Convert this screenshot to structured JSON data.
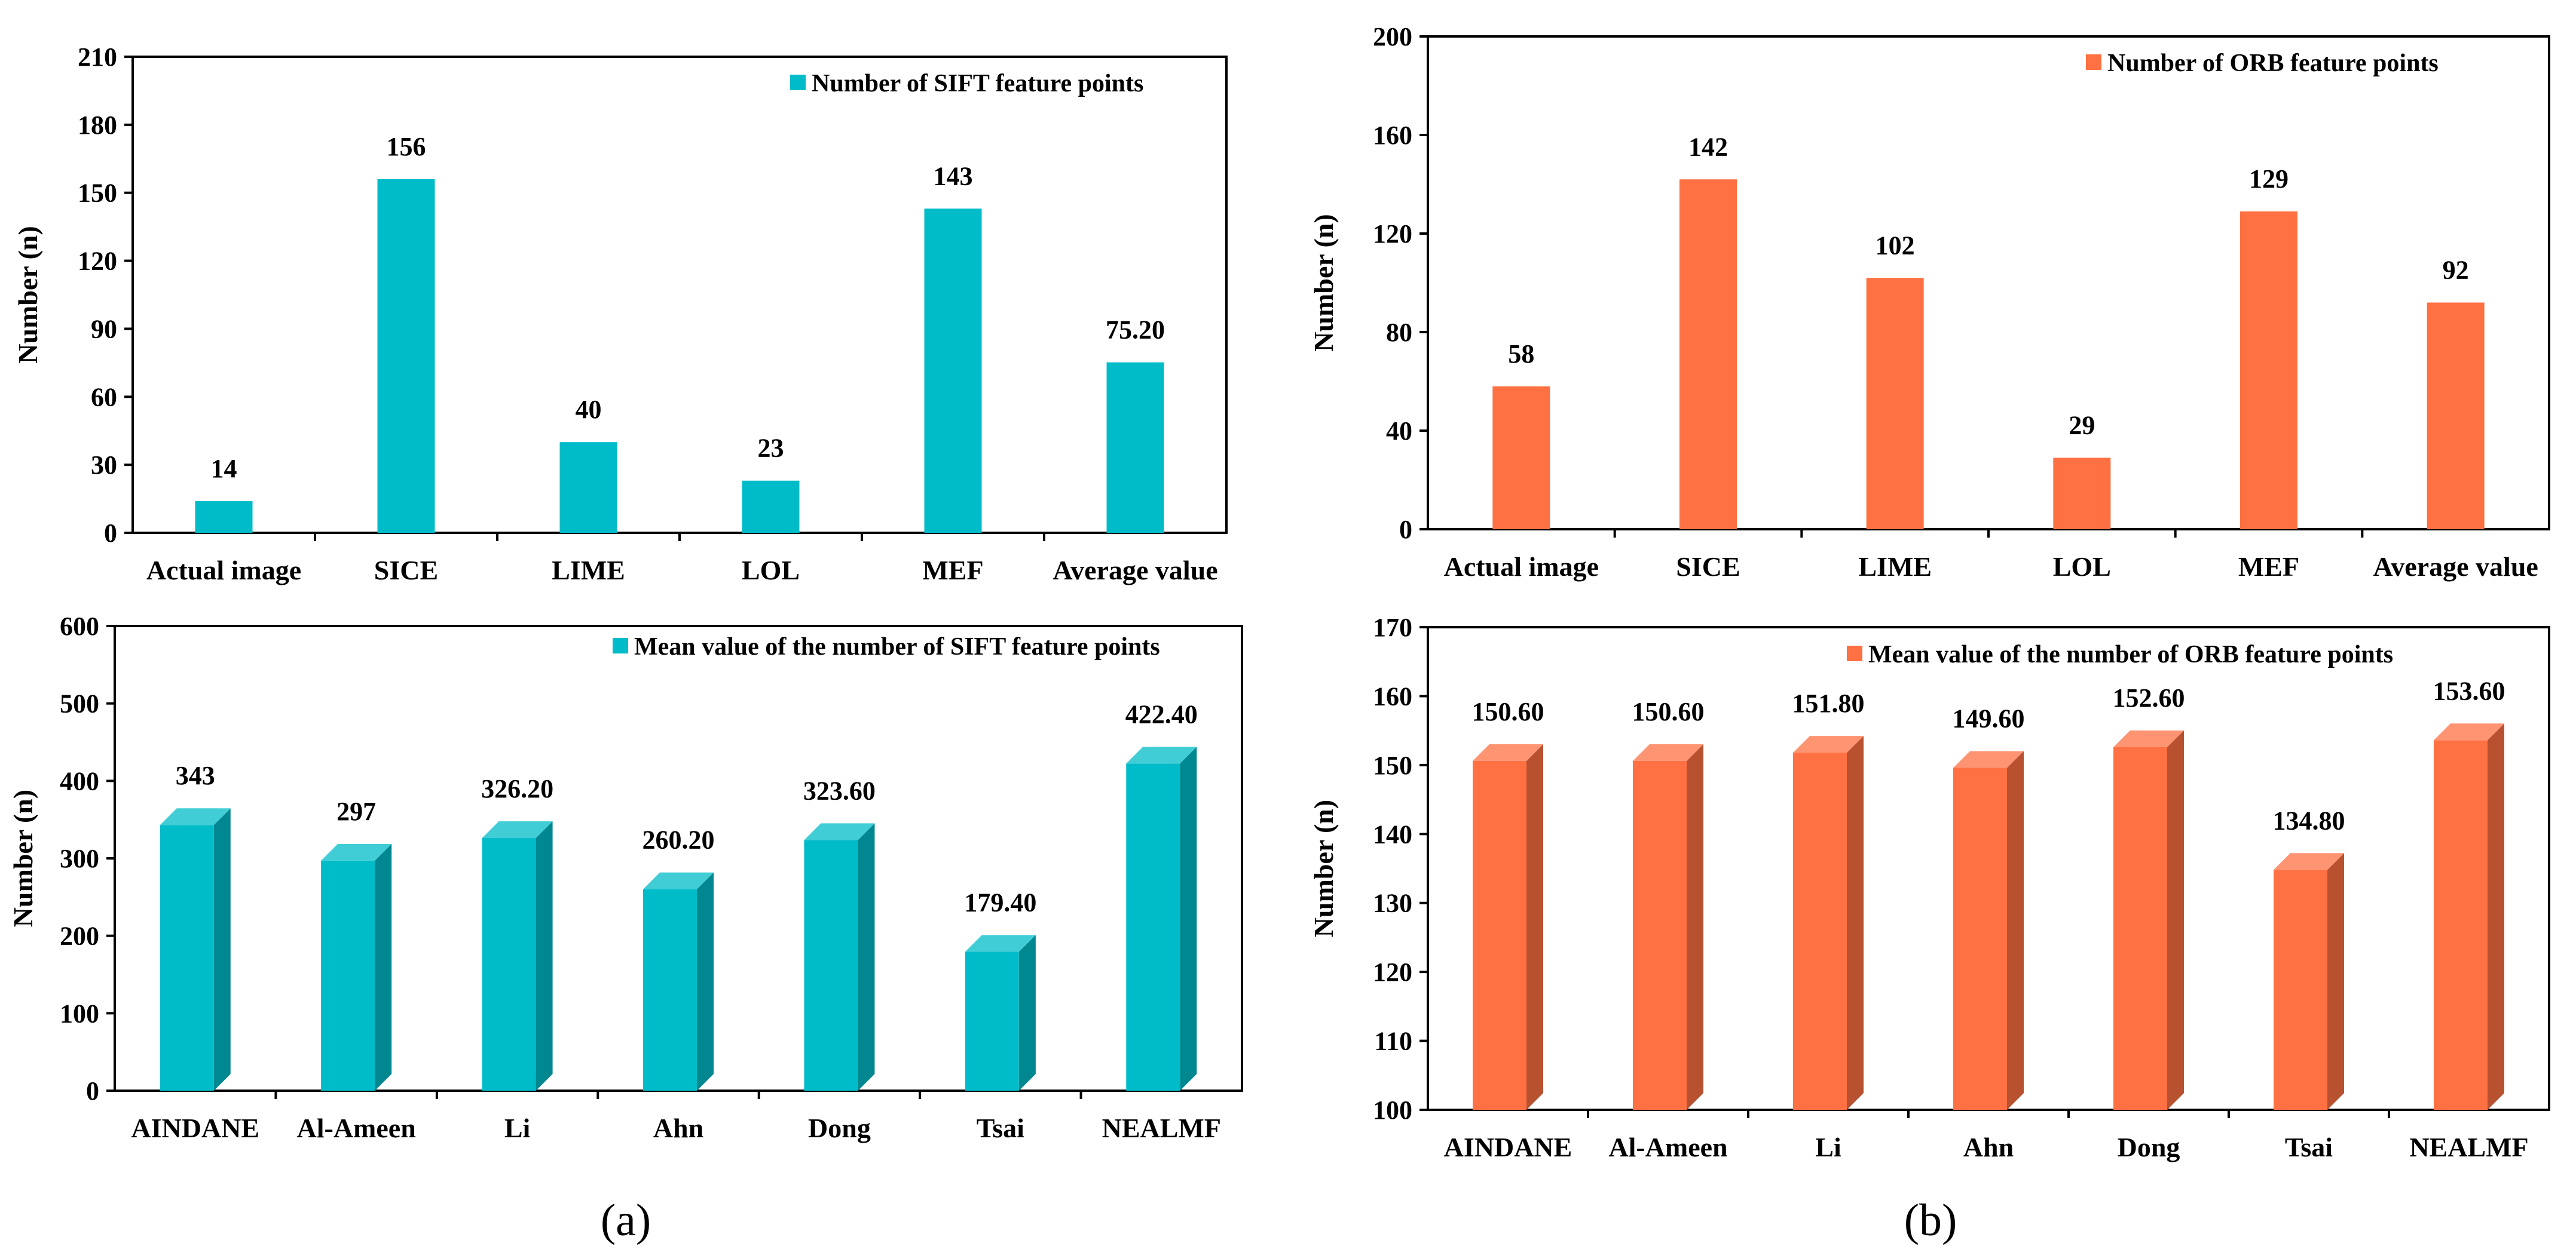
{
  "chart_data": [
    {
      "type": "bar",
      "title": "",
      "legend": "Number of SIFT feature points",
      "xlabel": "",
      "ylabel": "Number (n)",
      "ylim": [
        0,
        210
      ],
      "yticks": [
        0,
        30,
        60,
        90,
        120,
        150,
        180,
        210
      ],
      "ytick_labels": [
        "0",
        "30",
        "60",
        "90",
        "120",
        "150",
        "180",
        "210"
      ],
      "categories": [
        "Actual image",
        "SICE",
        "LIME",
        "LOL",
        "MEF",
        "Average value"
      ],
      "values": [
        14,
        156,
        40,
        23,
        143,
        75.2
      ],
      "value_labels": [
        "14",
        "156",
        "40",
        "23",
        "143",
        "75.20"
      ],
      "color": "#00BCC8",
      "style": "flat",
      "legend_position": "top-right"
    },
    {
      "type": "bar",
      "title": "",
      "legend": "Number of ORB feature points",
      "xlabel": "",
      "ylabel": "Number (n)",
      "ylim": [
        0,
        200
      ],
      "yticks": [
        0,
        40,
        80,
        120,
        160,
        200
      ],
      "ytick_labels": [
        "0",
        "40",
        "80",
        "120",
        "160",
        "200"
      ],
      "categories": [
        "Actual image",
        "SICE",
        "LIME",
        "LOL",
        "MEF",
        "Average value"
      ],
      "values": [
        58,
        142,
        102,
        29,
        129,
        92
      ],
      "value_labels": [
        "58",
        "142",
        "102",
        "29",
        "129",
        "92"
      ],
      "color": "#FF7043",
      "style": "flat",
      "legend_position": "top-right"
    },
    {
      "type": "bar",
      "title": "",
      "legend": "Mean value of the number of SIFT feature points",
      "xlabel": "",
      "ylabel": "Number (n)",
      "ylim": [
        0,
        600
      ],
      "yticks": [
        0,
        100,
        200,
        300,
        400,
        500,
        600
      ],
      "ytick_labels": [
        "0",
        "100",
        "200",
        "300",
        "400",
        "500",
        "600"
      ],
      "categories": [
        "AINDANE",
        "Al-Ameen",
        "Li",
        "Ahn",
        "Dong",
        "Tsai",
        "NEALMF"
      ],
      "values": [
        343,
        297,
        326.2,
        260.2,
        323.6,
        179.4,
        422.4
      ],
      "value_labels": [
        "343",
        "297",
        "326.20",
        "260.20",
        "323.60",
        "179.40",
        "422.40"
      ],
      "color": "#00BCC8",
      "style": "3d",
      "legend_position": "top-right"
    },
    {
      "type": "bar",
      "title": "",
      "legend": "Mean value of the number of ORB feature points",
      "xlabel": "",
      "ylabel": "Number (n)",
      "ylim": [
        100,
        170
      ],
      "yticks": [
        100,
        110,
        120,
        130,
        140,
        150,
        160,
        170
      ],
      "ytick_labels": [
        "100",
        "110",
        "120",
        "130",
        "140",
        "150",
        "160",
        "170"
      ],
      "categories": [
        "AINDANE",
        "Al-Ameen",
        "Li",
        "Ahn",
        "Dong",
        "Tsai",
        "NEALMF"
      ],
      "values": [
        150.6,
        150.6,
        151.8,
        149.6,
        152.6,
        134.8,
        153.6
      ],
      "value_labels": [
        "150.60",
        "150.60",
        "151.80",
        "149.60",
        "152.60",
        "134.80",
        "153.60"
      ],
      "color": "#FF7043",
      "style": "3d",
      "legend_position": "top-right"
    }
  ],
  "panel_labels": {
    "left": "(a)",
    "right": "(b)"
  }
}
